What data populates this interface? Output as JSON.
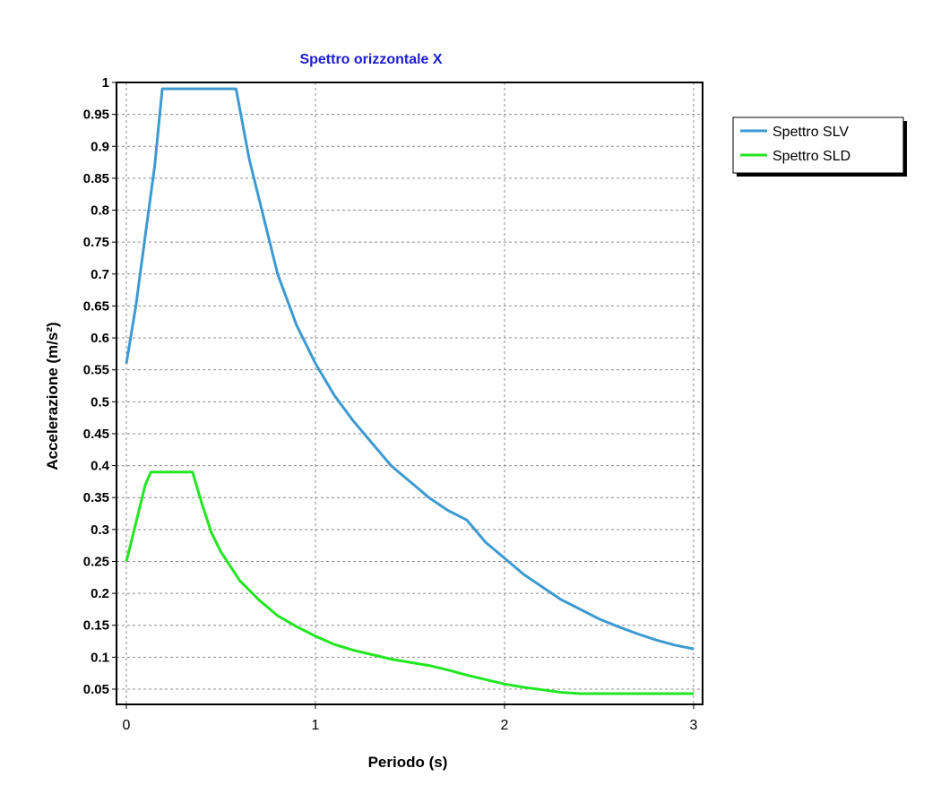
{
  "chart_data": {
    "type": "line",
    "title": "Spettro orizzontale X",
    "title_color": "#1c1cd6",
    "xlabel": "Periodo (s)",
    "ylabel": "Accelerazione (m/s²)",
    "xlim": [
      0,
      3
    ],
    "ylim": [
      0.0325,
      1
    ],
    "x_ticks": [
      0,
      1,
      2,
      3
    ],
    "x_tick_labels": [
      "0",
      "1",
      "2",
      "3"
    ],
    "y_ticks": [
      0.05,
      0.1,
      0.15,
      0.2,
      0.25,
      0.3,
      0.35,
      0.4,
      0.45,
      0.5,
      0.55,
      0.6,
      0.65,
      0.7,
      0.75,
      0.8,
      0.85,
      0.9,
      0.95,
      1
    ],
    "y_tick_labels": [
      "0.05",
      "0.1",
      "0.15",
      "0.2",
      "0.25",
      "0.3",
      "0.35",
      "0.4",
      "0.45",
      "0.5",
      "0.55",
      "0.6",
      "0.65",
      "0.7",
      "0.75",
      "0.8",
      "0.85",
      "0.9",
      "0.95",
      "1"
    ],
    "grid": true,
    "legend_position": "top-right",
    "series": [
      {
        "name": "Spettro SLV",
        "color": "#3d9ad1",
        "x": [
          0,
          0.05,
          0.1,
          0.15,
          0.19,
          0.3,
          0.4,
          0.5,
          0.58,
          0.65,
          0.7,
          0.8,
          0.9,
          1.0,
          1.1,
          1.2,
          1.3,
          1.4,
          1.5,
          1.6,
          1.7,
          1.8,
          1.9,
          2.0,
          2.1,
          2.2,
          2.3,
          2.4,
          2.5,
          2.6,
          2.7,
          2.8,
          2.9,
          3.0
        ],
        "y": [
          0.56,
          0.65,
          0.76,
          0.87,
          0.99,
          0.99,
          0.99,
          0.99,
          0.99,
          0.88,
          0.82,
          0.7,
          0.62,
          0.56,
          0.51,
          0.47,
          0.435,
          0.4,
          0.375,
          0.35,
          0.33,
          0.315,
          0.28,
          0.255,
          0.23,
          0.21,
          0.19,
          0.175,
          0.16,
          0.148,
          0.137,
          0.127,
          0.119,
          0.113
        ]
      },
      {
        "name": "Spettro SLD",
        "color": "#22e622",
        "x": [
          0,
          0.05,
          0.1,
          0.13,
          0.2,
          0.3,
          0.35,
          0.4,
          0.45,
          0.5,
          0.6,
          0.7,
          0.8,
          0.9,
          1.0,
          1.1,
          1.2,
          1.3,
          1.4,
          1.5,
          1.6,
          1.7,
          1.8,
          1.9,
          2.0,
          2.1,
          2.2,
          2.3,
          2.4,
          2.6,
          2.8,
          3.0
        ],
        "y": [
          0.25,
          0.31,
          0.37,
          0.39,
          0.39,
          0.39,
          0.39,
          0.34,
          0.295,
          0.265,
          0.22,
          0.19,
          0.165,
          0.148,
          0.133,
          0.12,
          0.111,
          0.104,
          0.097,
          0.092,
          0.087,
          0.08,
          0.072,
          0.065,
          0.058,
          0.053,
          0.049,
          0.045,
          0.043,
          0.043,
          0.043,
          0.043
        ]
      }
    ]
  }
}
